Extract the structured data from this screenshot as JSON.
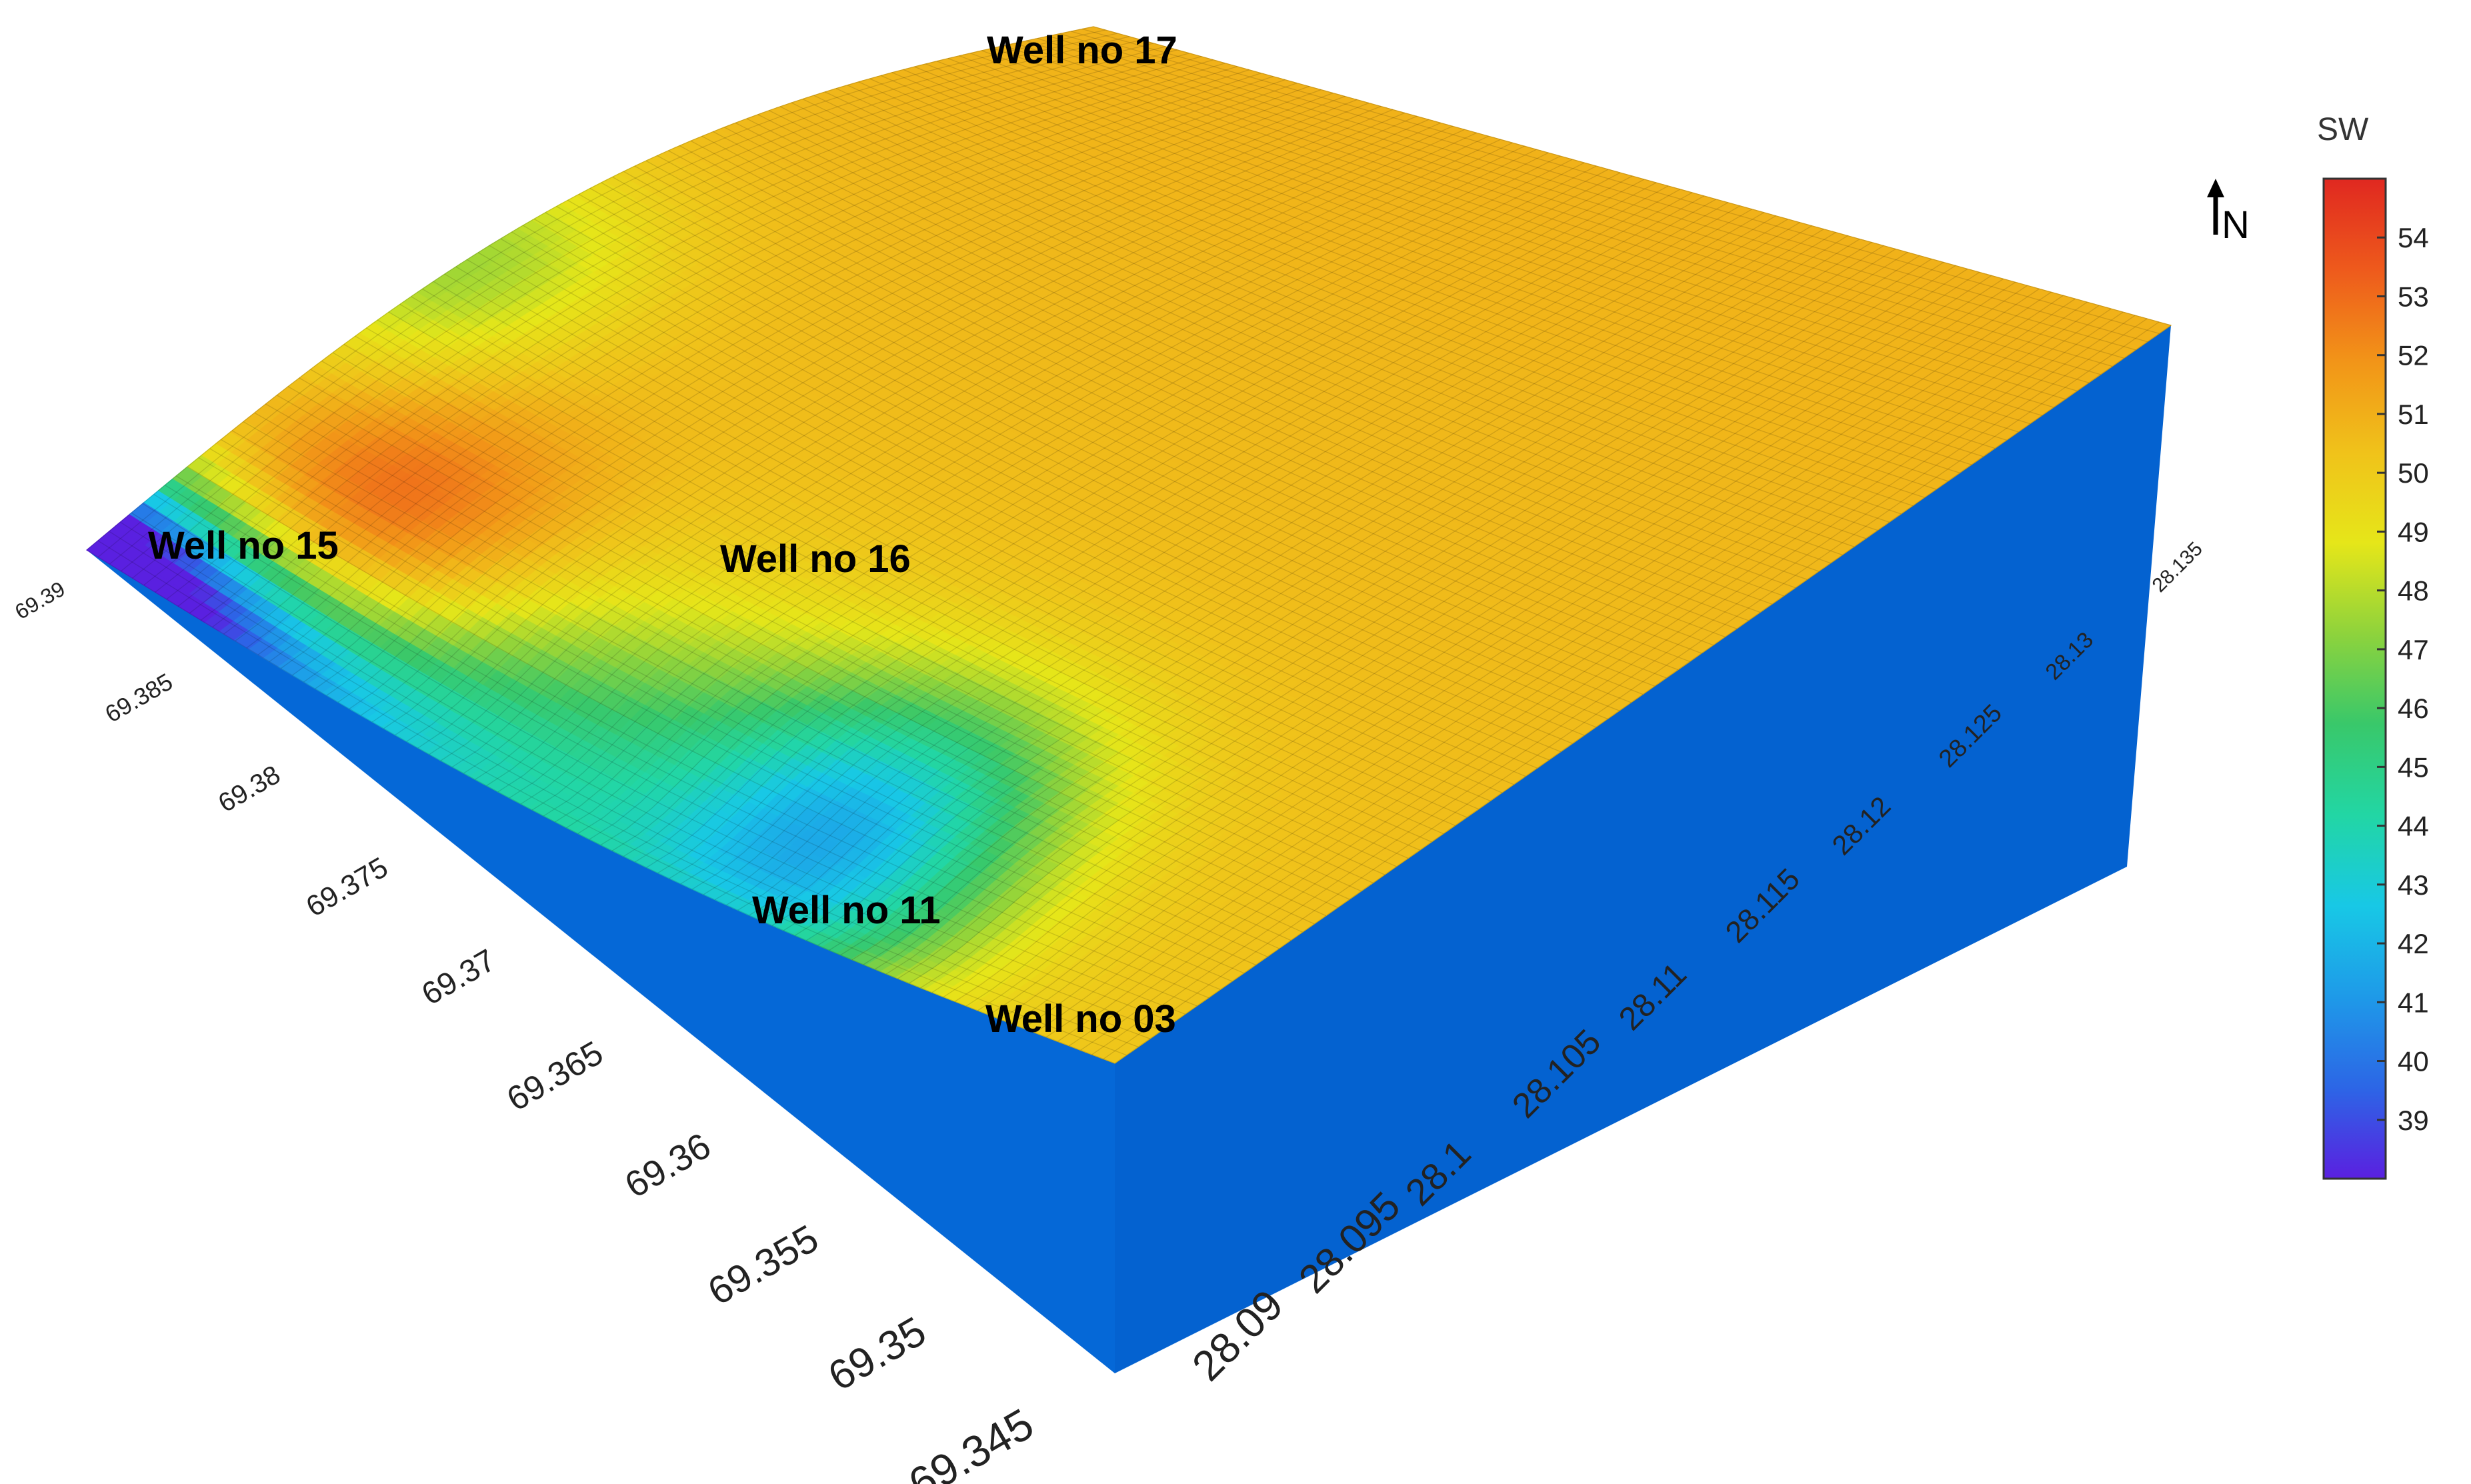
{
  "chart_data": {
    "type": "surface3d",
    "title": "",
    "colorbar": {
      "label": "SW",
      "min": 38,
      "max": 55,
      "ticks": [
        39,
        40,
        41,
        42,
        43,
        44,
        45,
        46,
        47,
        48,
        49,
        50,
        51,
        52,
        53,
        54
      ],
      "colors": [
        "#5a20e0",
        "#2c66e6",
        "#1e9ae8",
        "#18c8e6",
        "#22d6a4",
        "#39c86a",
        "#8ed33c",
        "#e6e619",
        "#f0c21a",
        "#f29418",
        "#ee5a1c",
        "#e02820"
      ]
    },
    "north_indicator": "N",
    "y_axis": {
      "ticks": [
        "69.39",
        "69.385",
        "69.38",
        "69.375",
        "69.37",
        "69.365",
        "69.36",
        "69.355",
        "69.35",
        "69.345"
      ],
      "range": [
        69.345,
        69.39
      ]
    },
    "x_axis": {
      "ticks": [
        "28.09",
        "28.095",
        "28.1",
        "28.105",
        "28.11",
        "28.115",
        "28.12",
        "28.125",
        "28.13",
        "28.135"
      ],
      "range": [
        28.09,
        28.135
      ]
    },
    "wells": [
      {
        "name": "Well no 17",
        "x": 28.095,
        "y": 69.39,
        "sw": 46.5
      },
      {
        "name": "Well no 15",
        "x": 28.09,
        "y": 69.39,
        "sw": 39
      },
      {
        "name": "Well no 16",
        "x": 28.095,
        "y": 69.372,
        "sw": 46
      },
      {
        "name": "Well no 11",
        "x": 28.093,
        "y": 69.357,
        "sw": 44
      },
      {
        "name": "Well no 03",
        "x": 28.09,
        "y": 69.345,
        "sw": 50.5
      }
    ],
    "base_color": "#0468d8"
  }
}
